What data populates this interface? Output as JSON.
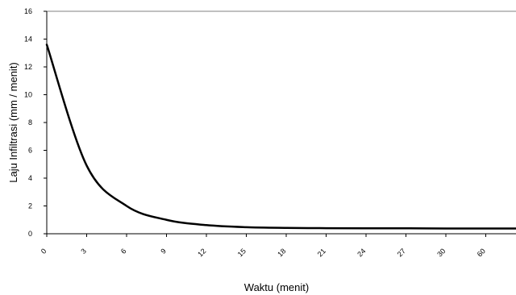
{
  "chart_data": {
    "type": "line",
    "xlabel": "Waktu (menit)",
    "ylabel": "Laju Infiltrasi (mm / menit)",
    "ylim": [
      0,
      16
    ],
    "y_ticks": [
      0,
      2,
      4,
      6,
      8,
      10,
      12,
      14,
      16
    ],
    "categories": [
      "0",
      "3",
      "6",
      "9",
      "12",
      "15",
      "18",
      "21",
      "24",
      "27",
      "30",
      "60"
    ],
    "series": [
      {
        "values": [
          13.6,
          4.9,
          2.0,
          1.0,
          0.62,
          0.47,
          0.42,
          0.4,
          0.39,
          0.39,
          0.38,
          0.38
        ],
        "color": "#000000"
      }
    ],
    "grid": false,
    "legend": "none"
  }
}
